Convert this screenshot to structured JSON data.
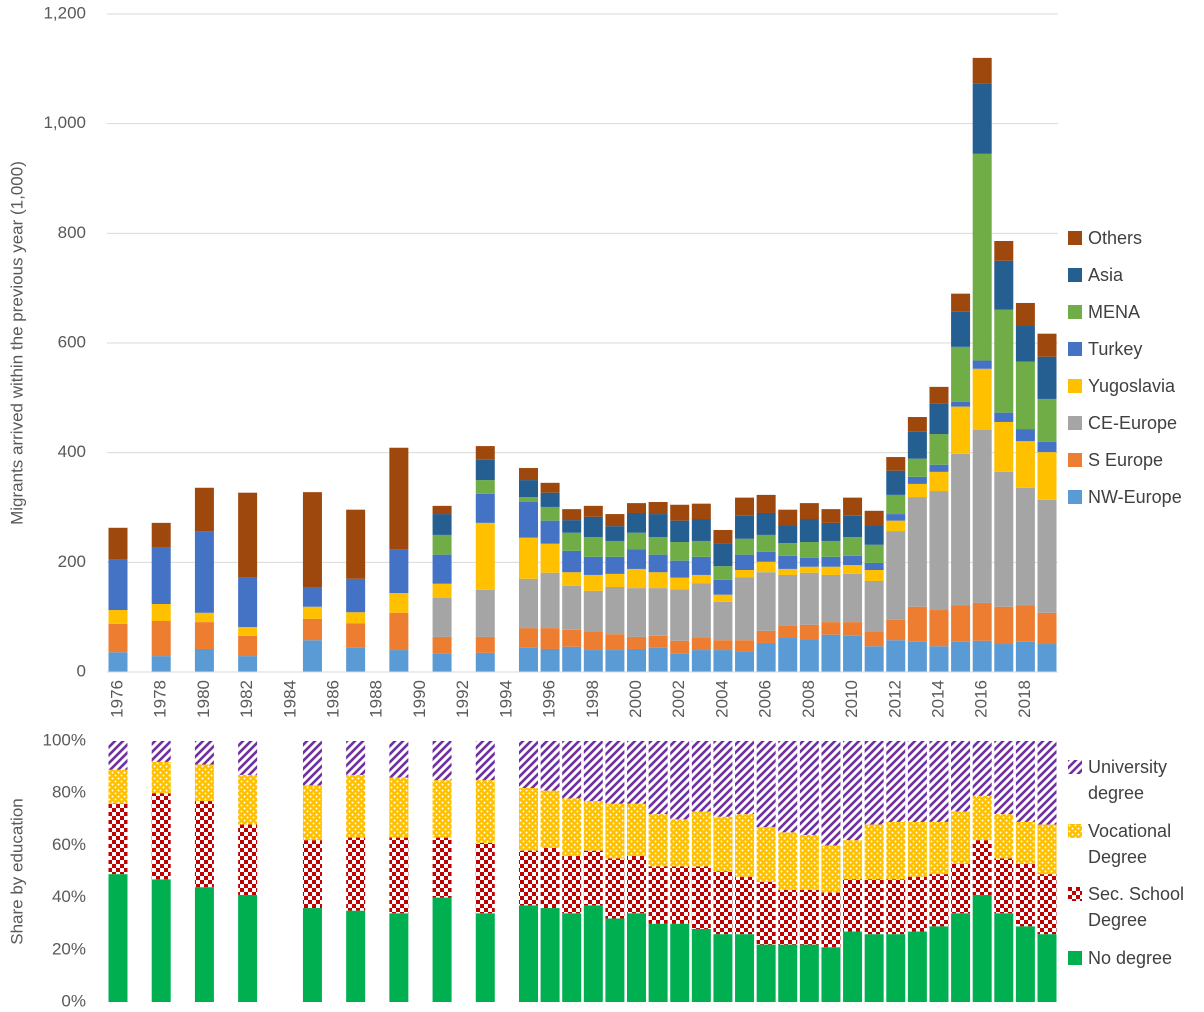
{
  "chart_data": [
    {
      "type": "stacked_bar",
      "ylabel": "Migrants arrived within the previous year (1,000)",
      "categories": [
        "1976",
        null,
        "1978",
        null,
        "1980",
        null,
        "1982",
        null,
        "1984",
        null,
        "1986",
        null,
        "1988",
        null,
        "1990",
        null,
        "1992",
        null,
        "1994",
        null,
        "1996",
        null,
        "1998",
        null,
        "2000",
        null,
        "2002",
        null,
        "2004",
        null,
        "2006",
        null,
        "2008",
        null,
        "2010",
        null,
        "2012",
        null,
        "2014",
        null,
        "2016",
        null,
        "2018",
        null
      ],
      "ylim": [
        0,
        1200
      ],
      "yticks": [
        0,
        200,
        400,
        600,
        800,
        {
          "value": 1000,
          "label": "1,000"
        },
        {
          "value": 1200,
          "label": "1,200"
        }
      ],
      "grid": true,
      "series": [
        {
          "name": "NW-Europe",
          "color": "#5b9bd5",
          "values": [
            36,
            null,
            29,
            null,
            42,
            null,
            29,
            null,
            null,
            58,
            null,
            44,
            null,
            40,
            null,
            33,
            null,
            35,
            null,
            44,
            42,
            46,
            40,
            40,
            42,
            44,
            33,
            40,
            40,
            38,
            53,
            62,
            60,
            68,
            66,
            47,
            58,
            55,
            47,
            55,
            57,
            51,
            55,
            51
          ]
        },
        {
          "name": "S Europe",
          "color": "#ed7d31",
          "values": [
            52,
            null,
            64,
            null,
            49,
            null,
            37,
            null,
            null,
            39,
            null,
            45,
            null,
            68,
            null,
            31,
            null,
            29,
            null,
            36,
            38,
            31,
            33,
            29,
            22,
            22,
            24,
            22,
            18,
            20,
            22,
            22,
            26,
            23,
            25,
            26,
            37,
            64,
            66,
            67,
            69,
            68,
            67,
            57
          ]
        },
        {
          "name": "CE-Europe",
          "color": "#a5a5a5",
          "values": [
            0,
            null,
            0,
            null,
            0,
            null,
            0,
            null,
            null,
            0,
            null,
            0,
            null,
            0,
            null,
            71,
            null,
            86,
            null,
            90,
            101,
            80,
            75,
            86,
            89,
            87,
            94,
            100,
            70,
            115,
            107,
            93,
            95,
            86,
            88,
            93,
            162,
            200,
            217,
            276,
            316,
            246,
            214,
            206
          ]
        },
        {
          "name": "Yugoslavia",
          "color": "#ffc000",
          "values": [
            25,
            null,
            31,
            null,
            17,
            null,
            16,
            null,
            null,
            22,
            null,
            20,
            null,
            36,
            null,
            26,
            null,
            122,
            null,
            75,
            53,
            25,
            29,
            24,
            35,
            29,
            21,
            15,
            13,
            13,
            19,
            11,
            11,
            15,
            16,
            20,
            19,
            24,
            35,
            86,
            111,
            91,
            85,
            87
          ]
        },
        {
          "name": "Turkey",
          "color": "#4472c4",
          "values": [
            93,
            null,
            104,
            null,
            149,
            null,
            90,
            null,
            null,
            36,
            null,
            61,
            null,
            79,
            null,
            53,
            null,
            53,
            null,
            65,
            42,
            39,
            33,
            31,
            36,
            32,
            31,
            33,
            27,
            28,
            18,
            24,
            16,
            18,
            17,
            13,
            12,
            13,
            13,
            9,
            15,
            17,
            22,
            19
          ]
        },
        {
          "name": "MENA",
          "color": "#70ad47",
          "values": [
            0,
            null,
            0,
            null,
            0,
            null,
            0,
            null,
            null,
            0,
            null,
            0,
            null,
            0,
            null,
            36,
            null,
            25,
            null,
            9,
            25,
            33,
            36,
            29,
            30,
            32,
            34,
            29,
            25,
            29,
            31,
            23,
            29,
            29,
            34,
            33,
            35,
            33,
            56,
            100,
            377,
            188,
            123,
            78
          ]
        },
        {
          "name": "Asia",
          "color": "#255e91",
          "values": [
            0,
            null,
            0,
            null,
            0,
            null,
            0,
            null,
            null,
            0,
            null,
            0,
            null,
            0,
            null,
            38,
            null,
            37,
            null,
            31,
            26,
            23,
            37,
            27,
            36,
            42,
            39,
            40,
            42,
            42,
            40,
            33,
            42,
            33,
            39,
            36,
            44,
            49,
            55,
            64,
            128,
            89,
            65,
            77
          ]
        },
        {
          "name": "Others",
          "color": "#9e480e",
          "values": [
            57,
            null,
            44,
            null,
            79,
            null,
            155,
            null,
            null,
            173,
            null,
            126,
            null,
            186,
            null,
            15,
            null,
            25,
            null,
            22,
            18,
            20,
            20,
            22,
            18,
            22,
            29,
            28,
            24,
            33,
            33,
            28,
            29,
            25,
            33,
            26,
            25,
            27,
            31,
            33,
            47,
            36,
            42,
            42
          ]
        }
      ]
    },
    {
      "type": "stacked_bar",
      "ylabel": "Share by education",
      "ylim": [
        0,
        100
      ],
      "yticks": [
        {
          "value": 0,
          "label": "0%"
        },
        {
          "value": 20,
          "label": "20%"
        },
        {
          "value": 40,
          "label": "40%"
        },
        {
          "value": 60,
          "label": "60%"
        },
        {
          "value": 80,
          "label": "80%"
        },
        {
          "value": 100,
          "label": "100%"
        }
      ],
      "grid": false,
      "series": [
        {
          "name": "No degree",
          "color": "#00b050",
          "pattern": "solid",
          "values": [
            49,
            null,
            47,
            null,
            44,
            null,
            41,
            null,
            null,
            36,
            null,
            35,
            null,
            34,
            null,
            40,
            null,
            34,
            null,
            37,
            36,
            34,
            37,
            32,
            34,
            30,
            30,
            28,
            26,
            26,
            22,
            22,
            22,
            21,
            27,
            26,
            26,
            27,
            29,
            34,
            41,
            34,
            29,
            26
          ]
        },
        {
          "name": "Sec. School Degree",
          "color": "#c00000",
          "pattern": "checker",
          "values": [
            27,
            null,
            33,
            null,
            33,
            null,
            27,
            null,
            null,
            26,
            null,
            28,
            null,
            29,
            null,
            23,
            null,
            27,
            null,
            21,
            23,
            22,
            21,
            23,
            22,
            22,
            22,
            24,
            24,
            22,
            24,
            21,
            21,
            21,
            20,
            21,
            21,
            21,
            20,
            19,
            21,
            21,
            24,
            23
          ]
        },
        {
          "name": "Vocational Degree",
          "color": "#ffc000",
          "pattern": "dots",
          "values": [
            13,
            null,
            12,
            null,
            14,
            null,
            19,
            null,
            null,
            21,
            null,
            24,
            null,
            23,
            null,
            22,
            null,
            24,
            null,
            24,
            22,
            22,
            19,
            21,
            20,
            20,
            18,
            21,
            21,
            24,
            21,
            22,
            21,
            18,
            15,
            21,
            22,
            21,
            20,
            20,
            17,
            17,
            16,
            19
          ]
        },
        {
          "name": "University degree",
          "color": "#7030a0",
          "pattern": "diagonal",
          "values": [
            11,
            null,
            8,
            null,
            9,
            null,
            13,
            null,
            null,
            17,
            null,
            13,
            null,
            14,
            null,
            15,
            null,
            15,
            null,
            18,
            19,
            22,
            23,
            24,
            24,
            28,
            30,
            27,
            29,
            28,
            33,
            35,
            36,
            40,
            38,
            32,
            31,
            31,
            31,
            27,
            21,
            28,
            31,
            32
          ]
        }
      ]
    }
  ]
}
